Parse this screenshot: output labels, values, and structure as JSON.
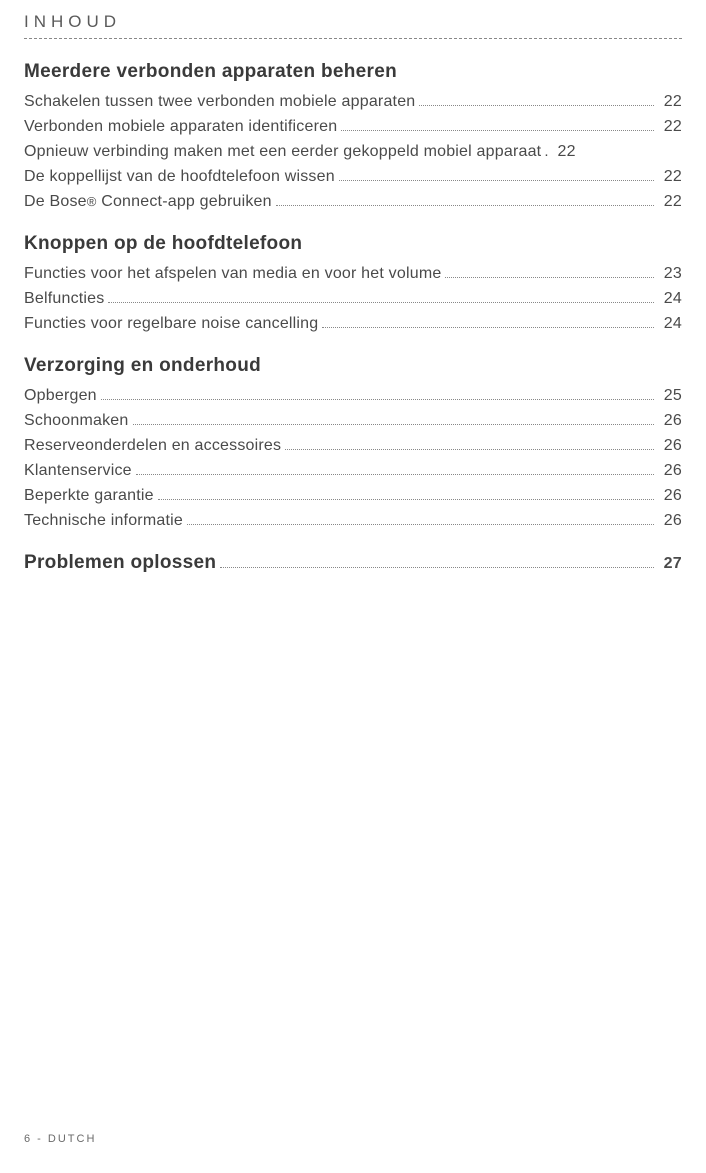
{
  "header": "INHOUD",
  "sections": [
    {
      "title": "Meerdere verbonden apparaten beheren",
      "titleHasLeader": false,
      "entries": [
        {
          "label": "Schakelen tussen  twee verbonden mobiele apparaten",
          "page": "22",
          "dot": false
        },
        {
          "label": "Verbonden mobiele apparaten identificeren",
          "page": "22",
          "dot": false
        },
        {
          "label": "Opnieuw verbinding maken  met  een  eerder  gekoppeld mobiel apparaat",
          "page": "22",
          "dot": true
        },
        {
          "label": "De koppellijst van de hoofdtelefoon wissen",
          "page": "22",
          "dot": false
        },
        {
          "label": "De Bose® Connect-app gebruiken",
          "page": "22",
          "dot": false
        }
      ]
    },
    {
      "title": "Knoppen  op de  hoofdtelefoon",
      "titleHasLeader": false,
      "entries": [
        {
          "label": "Functies voor  het  afspelen van media  en voor  het volume",
          "page": "23",
          "dot": false
        },
        {
          "label": "Belfuncties",
          "page": "24",
          "dot": false
        },
        {
          "label": "Functies voor  regelbare noise  cancelling",
          "page": "24",
          "dot": false
        }
      ]
    },
    {
      "title": "Verzorging en onderhoud",
      "titleHasLeader": false,
      "entries": [
        {
          "label": "Opbergen",
          "page": "25",
          "dot": false
        },
        {
          "label": "Schoonmaken",
          "page": "26",
          "dot": false
        },
        {
          "label": "Reserveonderdelen en accessoires",
          "page": "26",
          "dot": false
        },
        {
          "label": "Klantenservice",
          "page": "26",
          "dot": false
        },
        {
          "label": "Beperkte garantie",
          "page": "26",
          "dot": false
        },
        {
          "label": "Technische informatie",
          "page": "26",
          "dot": false
        }
      ]
    },
    {
      "title": "Problemen  oplossen",
      "titleHasLeader": true,
      "titlePage": "27",
      "entries": []
    }
  ],
  "footer": "6 - DUTCH"
}
